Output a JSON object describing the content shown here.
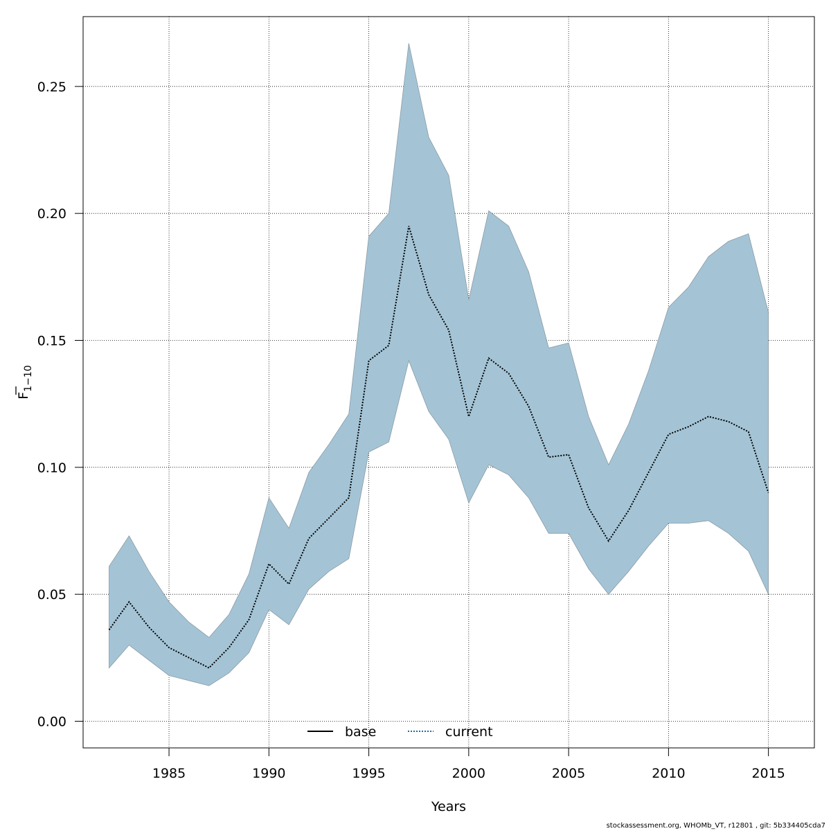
{
  "chart_data": {
    "type": "area",
    "title": "",
    "xlabel": "Years",
    "ylabel": {
      "base": "F",
      "subscript": "1−10"
    },
    "xlim": [
      1980.7,
      2017.3
    ],
    "ylim": [
      -0.0105,
      0.2775
    ],
    "x_ticks": [
      1985,
      1990,
      1995,
      2000,
      2005,
      2010,
      2015
    ],
    "y_ticks": [
      0.0,
      0.05,
      0.1,
      0.15,
      0.2,
      0.25
    ],
    "y_tick_labels": [
      "0.00",
      "0.05",
      "0.10",
      "0.15",
      "0.20",
      "0.25"
    ],
    "grid": true,
    "years": [
      1982,
      1983,
      1984,
      1985,
      1986,
      1987,
      1988,
      1989,
      1990,
      1991,
      1992,
      1993,
      1994,
      1995,
      1996,
      1997,
      1998,
      1999,
      2000,
      2001,
      2002,
      2003,
      2004,
      2005,
      2006,
      2007,
      2008,
      2009,
      2010,
      2011,
      2012,
      2013,
      2014,
      2015
    ],
    "series": [
      {
        "name": "current",
        "style": "dotted",
        "values": [
          0.036,
          0.047,
          0.037,
          0.029,
          0.025,
          0.021,
          0.029,
          0.04,
          0.062,
          0.054,
          0.072,
          0.08,
          0.088,
          0.142,
          0.148,
          0.195,
          0.168,
          0.154,
          0.12,
          0.143,
          0.137,
          0.124,
          0.104,
          0.105,
          0.084,
          0.071,
          0.083,
          0.098,
          0.113,
          0.116,
          0.12,
          0.118,
          0.114,
          0.09
        ],
        "lower": [
          0.021,
          0.03,
          0.024,
          0.018,
          0.016,
          0.014,
          0.019,
          0.027,
          0.044,
          0.038,
          0.052,
          0.059,
          0.064,
          0.106,
          0.11,
          0.142,
          0.122,
          0.111,
          0.086,
          0.101,
          0.097,
          0.088,
          0.074,
          0.074,
          0.06,
          0.05,
          0.059,
          0.069,
          0.078,
          0.078,
          0.079,
          0.074,
          0.067,
          0.05
        ],
        "upper": [
          0.061,
          0.073,
          0.059,
          0.047,
          0.039,
          0.033,
          0.042,
          0.058,
          0.088,
          0.076,
          0.098,
          0.109,
          0.121,
          0.191,
          0.2,
          0.267,
          0.23,
          0.215,
          0.166,
          0.201,
          0.195,
          0.177,
          0.147,
          0.149,
          0.12,
          0.101,
          0.117,
          0.138,
          0.163,
          0.171,
          0.183,
          0.189,
          0.192,
          0.161
        ]
      }
    ],
    "legend": {
      "placement": "bottom-center",
      "entries": [
        {
          "label": "base",
          "style": "solid"
        },
        {
          "label": "current",
          "style": "dotted"
        }
      ]
    }
  },
  "colors": {
    "band": "#a4c4d6",
    "band_edge": "#8a9aa3",
    "line": "#000000",
    "legend_current": "#1a6aa0",
    "grid": "#000000"
  },
  "footer": "stockassessment.org, WHOMb_VT, r12801 , git: 5b334405cda7"
}
